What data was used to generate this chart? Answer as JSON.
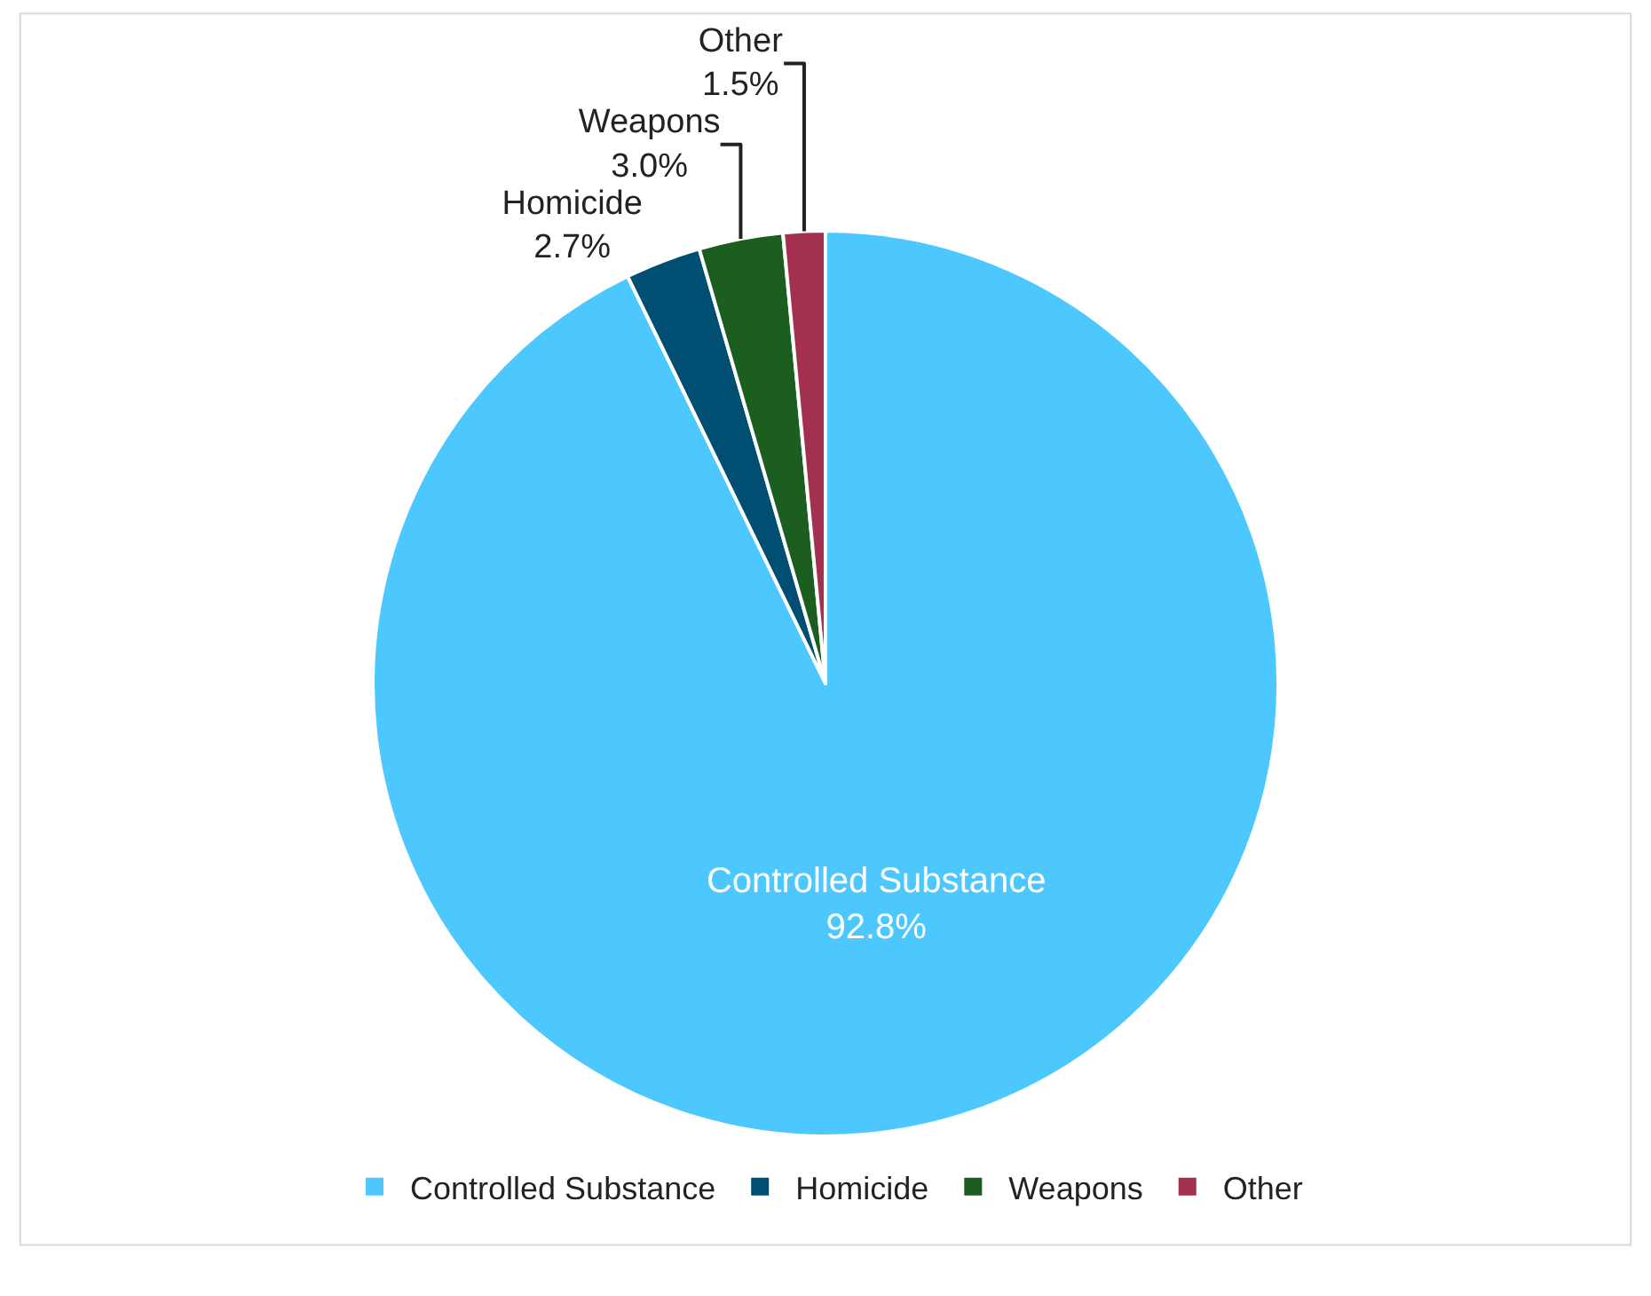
{
  "chart_data": {
    "type": "pie",
    "categories": [
      "Controlled Substance",
      "Homicide",
      "Weapons",
      "Other"
    ],
    "values": [
      92.8,
      2.7,
      3.0,
      1.5
    ],
    "value_labels": [
      "92.8%",
      "2.7%",
      "3.0%",
      "1.5%"
    ],
    "colors": [
      "#4cc8ff",
      "#004f73",
      "#1b5e20",
      "#a3304e"
    ],
    "legend": "bottom"
  }
}
